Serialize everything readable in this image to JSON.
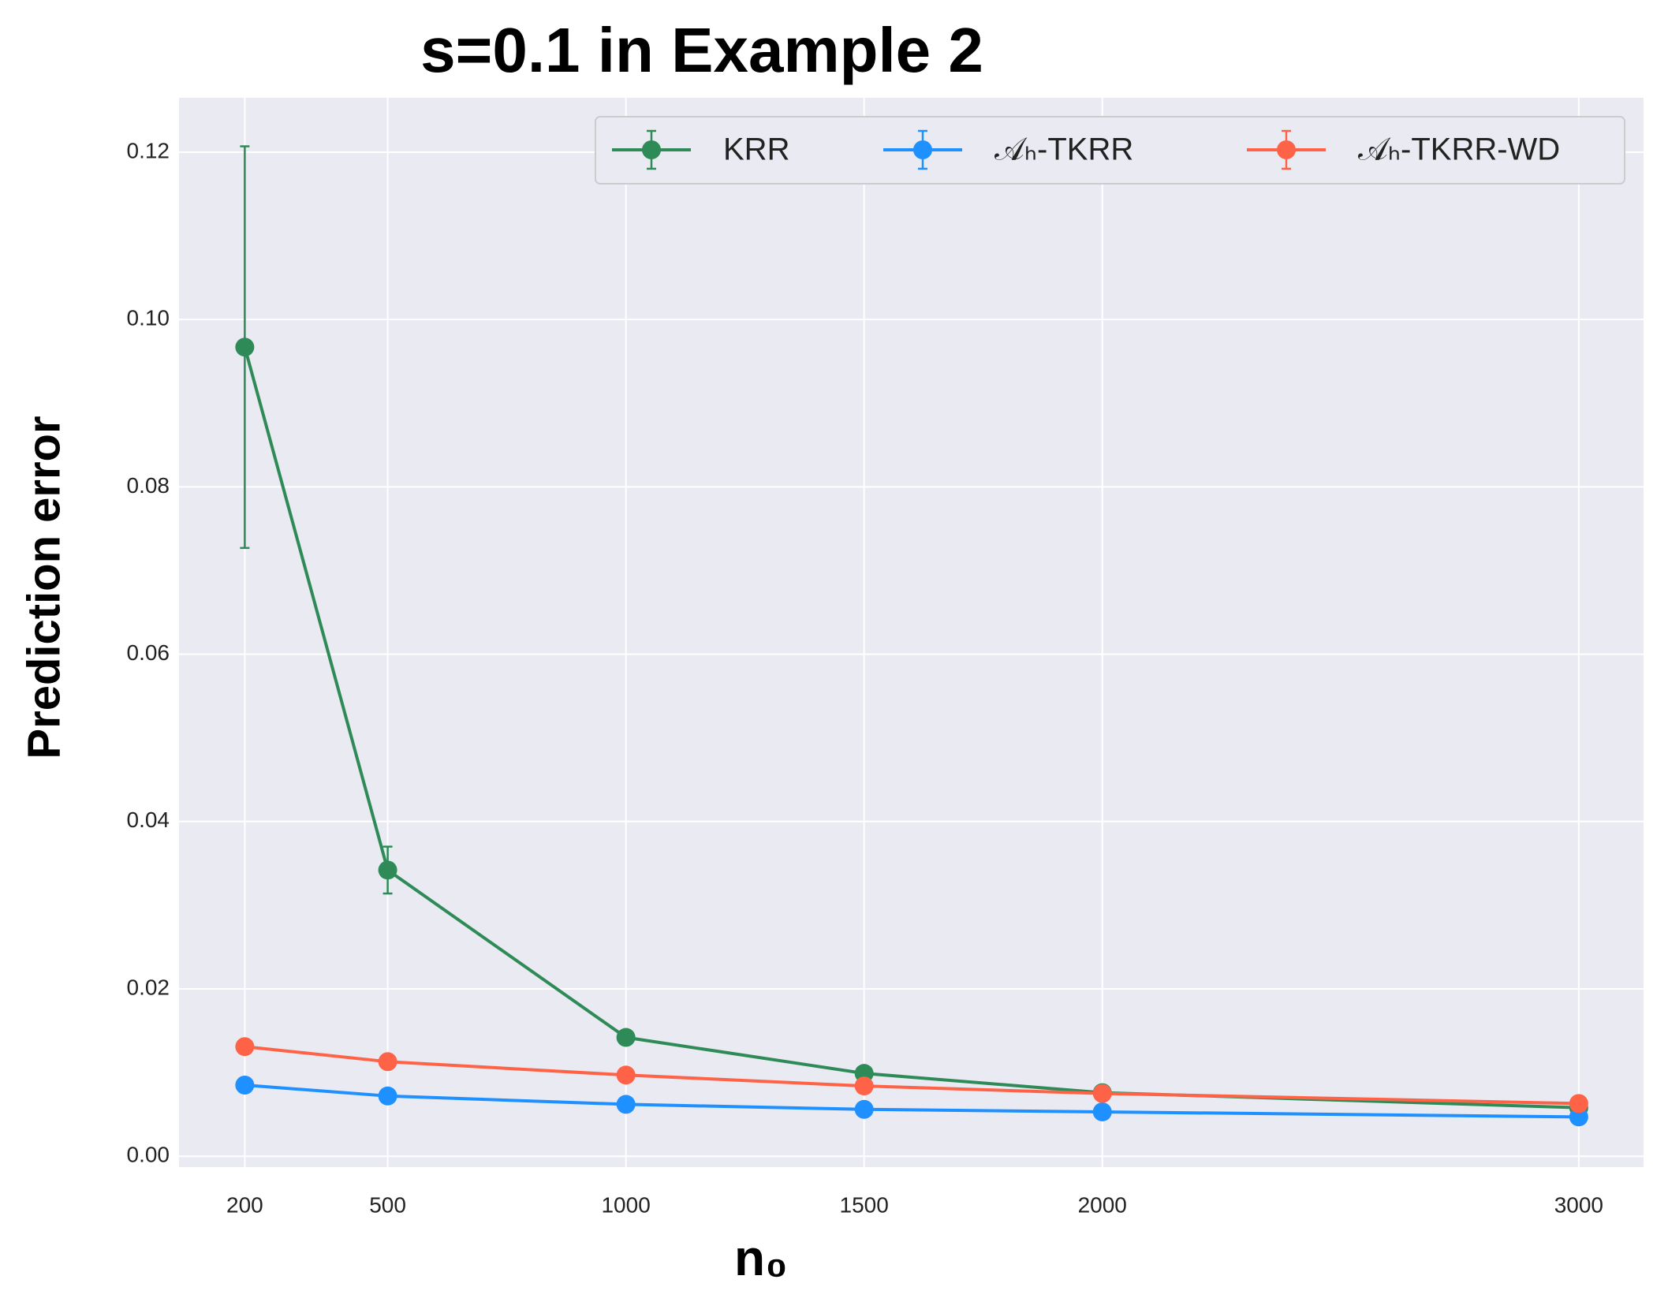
{
  "chart_data": {
    "type": "line",
    "title": "s=0.1 in Example 2",
    "xlabel": "n₀",
    "ylabel": "Prediction error",
    "x": [
      200,
      500,
      1000,
      1500,
      2000,
      3000
    ],
    "series": [
      {
        "name": "KRR",
        "color": "#2e8b57",
        "values": [
          0.0967,
          0.0342,
          0.0142,
          0.0099,
          0.0076,
          0.0058
        ],
        "errors": [
          0.024,
          0.0028,
          0.0003,
          0.0002,
          0.0002,
          0.0002
        ]
      },
      {
        "name": "𝒜ₕ-TKRR",
        "color": "#1e90ff",
        "values": [
          0.0085,
          0.0072,
          0.0062,
          0.0056,
          0.0053,
          0.0047
        ]
      },
      {
        "name": "𝒜ₕ-TKRR-WD",
        "color": "#ff6347",
        "values": [
          0.0131,
          0.0113,
          0.0097,
          0.0084,
          0.0075,
          0.0063
        ]
      }
    ],
    "xlim": [
      62,
      3136
    ],
    "ylim": [
      -0.0013,
      0.1265
    ],
    "xticks": [
      200,
      500,
      1000,
      1500,
      2000,
      3000
    ],
    "yticks": [
      {
        "value": 0,
        "label": "0.00"
      },
      {
        "value": 0.02,
        "label": "0.02"
      },
      {
        "value": 0.04,
        "label": "0.04"
      },
      {
        "value": 0.06,
        "label": "0.06"
      },
      {
        "value": 0.08,
        "label": "0.08"
      },
      {
        "value": 0.1,
        "label": "0.10"
      },
      {
        "value": 0.12,
        "label": "0.12"
      }
    ],
    "grid": true,
    "legend": "upper right"
  }
}
